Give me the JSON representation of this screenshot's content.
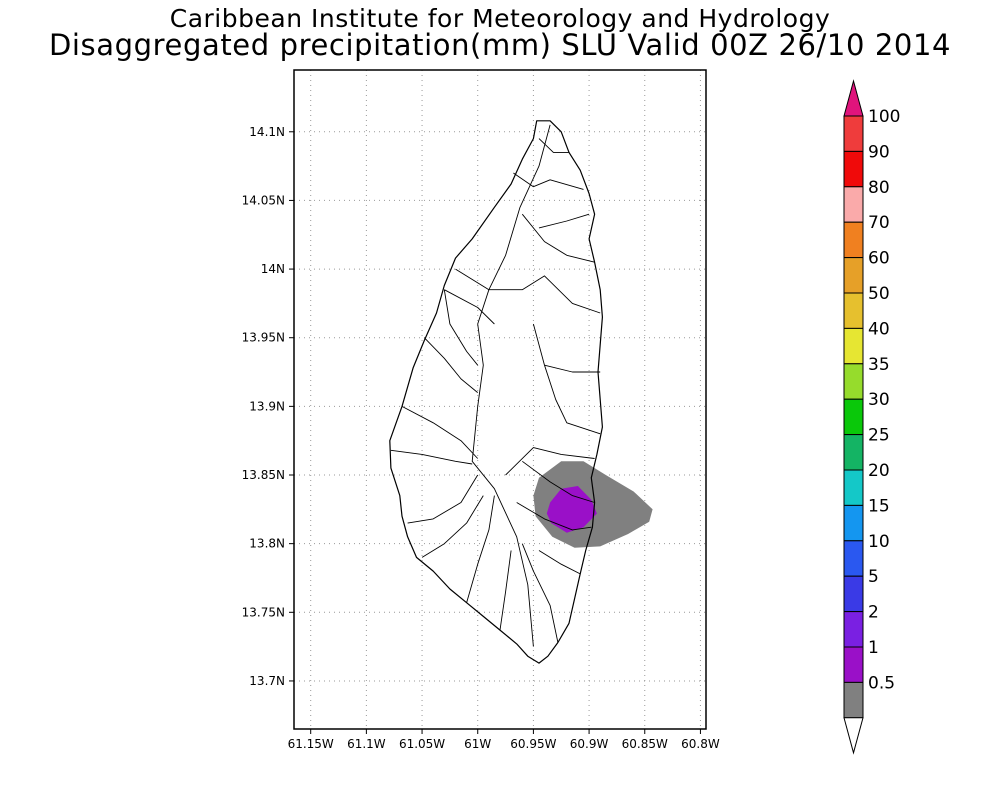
{
  "title": {
    "line1": "Caribbean Institute for Meteorology and Hydrology",
    "line2": "Disaggregated precipitation(mm) SLU Valid 00Z 26/10 2014"
  },
  "map": {
    "lon_range": [
      -61.165,
      -60.795
    ],
    "lat_range": [
      13.665,
      14.145
    ],
    "x_ticks": [
      {
        "value": -61.15,
        "label": "61.15W"
      },
      {
        "value": -61.1,
        "label": "61.1W"
      },
      {
        "value": -61.05,
        "label": "61.05W"
      },
      {
        "value": -61.0,
        "label": "61W"
      },
      {
        "value": -60.95,
        "label": "60.95W"
      },
      {
        "value": -60.9,
        "label": "60.9W"
      },
      {
        "value": -60.85,
        "label": "60.85W"
      },
      {
        "value": -60.8,
        "label": "60.8W"
      }
    ],
    "y_ticks": [
      {
        "value": 14.1,
        "label": "14.1N"
      },
      {
        "value": 14.05,
        "label": "14.05N"
      },
      {
        "value": 14.0,
        "label": "14N"
      },
      {
        "value": 13.95,
        "label": "13.95N"
      },
      {
        "value": 13.9,
        "label": "13.9N"
      },
      {
        "value": 13.85,
        "label": "13.85N"
      },
      {
        "value": 13.8,
        "label": "13.8N"
      },
      {
        "value": 13.75,
        "label": "13.75N"
      },
      {
        "value": 13.7,
        "label": "13.7N"
      }
    ],
    "grid": true,
    "grid_style": "dotted",
    "island_name": "Saint Lucia",
    "coastline_lonlat": [
      [
        -60.947,
        14.108
      ],
      [
        -60.935,
        14.108
      ],
      [
        -60.925,
        14.1
      ],
      [
        -60.918,
        14.085
      ],
      [
        -60.908,
        14.072
      ],
      [
        -60.9,
        14.055
      ],
      [
        -60.895,
        14.04
      ],
      [
        -60.9,
        14.022
      ],
      [
        -60.895,
        14.005
      ],
      [
        -60.89,
        13.985
      ],
      [
        -60.888,
        13.965
      ],
      [
        -60.89,
        13.945
      ],
      [
        -60.892,
        13.925
      ],
      [
        -60.89,
        13.905
      ],
      [
        -60.888,
        13.885
      ],
      [
        -60.893,
        13.865
      ],
      [
        -60.898,
        13.848
      ],
      [
        -60.895,
        13.83
      ],
      [
        -60.897,
        13.812
      ],
      [
        -60.903,
        13.795
      ],
      [
        -60.908,
        13.778
      ],
      [
        -60.913,
        13.76
      ],
      [
        -60.918,
        13.742
      ],
      [
        -60.928,
        13.728
      ],
      [
        -60.937,
        13.718
      ],
      [
        -60.945,
        13.713
      ],
      [
        -60.955,
        13.718
      ],
      [
        -60.965,
        13.727
      ],
      [
        -60.98,
        13.737
      ],
      [
        -60.995,
        13.747
      ],
      [
        -61.01,
        13.757
      ],
      [
        -61.025,
        13.767
      ],
      [
        -61.04,
        13.78
      ],
      [
        -61.055,
        13.79
      ],
      [
        -61.063,
        13.805
      ],
      [
        -61.068,
        13.82
      ],
      [
        -61.07,
        13.835
      ],
      [
        -61.078,
        13.855
      ],
      [
        -61.079,
        13.875
      ],
      [
        -61.068,
        13.9
      ],
      [
        -61.058,
        13.928
      ],
      [
        -61.048,
        13.948
      ],
      [
        -61.037,
        13.968
      ],
      [
        -61.03,
        13.988
      ],
      [
        -61.02,
        14.008
      ],
      [
        -61.005,
        14.022
      ],
      [
        -60.985,
        14.045
      ],
      [
        -60.97,
        14.062
      ],
      [
        -60.96,
        14.08
      ],
      [
        -60.95,
        14.095
      ]
    ],
    "rivers_lonlat": [
      [
        [
          -60.935,
          14.105
        ],
        [
          -60.945,
          14.075
        ],
        [
          -60.962,
          14.045
        ],
        [
          -60.975,
          14.01
        ],
        [
          -60.99,
          13.985
        ],
        [
          -61.0,
          13.96
        ],
        [
          -60.995,
          13.93
        ],
        [
          -61.0,
          13.9
        ],
        [
          -61.005,
          13.86
        ],
        [
          -60.985,
          13.84
        ],
        [
          -60.965,
          13.805
        ],
        [
          -60.955,
          13.77
        ],
        [
          -60.95,
          13.725
        ]
      ],
      [
        [
          -61.02,
          14.0
        ],
        [
          -60.99,
          13.985
        ],
        [
          -60.96,
          13.985
        ],
        [
          -60.94,
          13.995
        ],
        [
          -60.915,
          13.975
        ],
        [
          -60.89,
          13.968
        ]
      ],
      [
        [
          -61.03,
          13.985
        ],
        [
          -61.025,
          13.96
        ],
        [
          -61.01,
          13.94
        ],
        [
          -61.0,
          13.93
        ]
      ],
      [
        [
          -61.048,
          13.95
        ],
        [
          -61.03,
          13.935
        ],
        [
          -61.015,
          13.92
        ],
        [
          -61.0,
          13.91
        ]
      ],
      [
        [
          -61.068,
          13.9
        ],
        [
          -61.04,
          13.888
        ],
        [
          -61.015,
          13.875
        ],
        [
          -61.0,
          13.862
        ]
      ],
      [
        [
          -61.078,
          13.868
        ],
        [
          -61.05,
          13.865
        ],
        [
          -61.02,
          13.86
        ],
        [
          -61.005,
          13.858
        ]
      ],
      [
        [
          -60.95,
          13.96
        ],
        [
          -60.94,
          13.93
        ],
        [
          -60.93,
          13.905
        ],
        [
          -60.92,
          13.888
        ],
        [
          -60.89,
          13.88
        ]
      ],
      [
        [
          -60.94,
          13.93
        ],
        [
          -60.915,
          13.925
        ],
        [
          -60.89,
          13.925
        ]
      ],
      [
        [
          -60.96,
          14.04
        ],
        [
          -60.94,
          14.02
        ],
        [
          -60.92,
          14.01
        ],
        [
          -60.895,
          14.005
        ]
      ],
      [
        [
          -60.968,
          14.07
        ],
        [
          -60.95,
          14.06
        ],
        [
          -60.935,
          14.065
        ],
        [
          -60.905,
          14.058
        ]
      ],
      [
        [
          -60.96,
          13.86
        ],
        [
          -60.935,
          13.845
        ],
        [
          -60.915,
          13.835
        ],
        [
          -60.895,
          13.83
        ]
      ],
      [
        [
          -60.965,
          13.83
        ],
        [
          -60.94,
          13.818
        ],
        [
          -60.915,
          13.81
        ],
        [
          -60.898,
          13.812
        ]
      ],
      [
        [
          -60.975,
          13.85
        ],
        [
          -60.95,
          13.87
        ],
        [
          -60.925,
          13.865
        ],
        [
          -60.895,
          13.862
        ]
      ],
      [
        [
          -61.063,
          13.815
        ],
        [
          -61.04,
          13.818
        ],
        [
          -61.015,
          13.83
        ],
        [
          -61.0,
          13.85
        ]
      ],
      [
        [
          -61.05,
          13.79
        ],
        [
          -61.03,
          13.8
        ],
        [
          -61.01,
          13.815
        ],
        [
          -60.995,
          13.835
        ]
      ],
      [
        [
          -61.01,
          13.757
        ],
        [
          -61.0,
          13.785
        ],
        [
          -60.99,
          13.81
        ],
        [
          -60.985,
          13.835
        ]
      ],
      [
        [
          -60.98,
          13.737
        ],
        [
          -60.975,
          13.765
        ],
        [
          -60.97,
          13.795
        ]
      ],
      [
        [
          -60.928,
          13.728
        ],
        [
          -60.935,
          13.755
        ],
        [
          -60.95,
          13.78
        ],
        [
          -60.96,
          13.8
        ]
      ],
      [
        [
          -60.908,
          13.778
        ],
        [
          -60.925,
          13.785
        ],
        [
          -60.945,
          13.795
        ]
      ],
      [
        [
          -61.03,
          13.985
        ],
        [
          -61.0,
          13.972
        ],
        [
          -60.985,
          13.96
        ]
      ],
      [
        [
          -60.9,
          14.04
        ],
        [
          -60.92,
          14.035
        ],
        [
          -60.945,
          14.03
        ]
      ],
      [
        [
          -60.945,
          14.095
        ],
        [
          -60.932,
          14.085
        ],
        [
          -60.918,
          14.085
        ]
      ]
    ]
  },
  "precipitation_fields": [
    {
      "name": "0.5-1 mm",
      "color": "#808080",
      "outline_lonlat": [
        [
          -60.945,
          13.848
        ],
        [
          -60.925,
          13.86
        ],
        [
          -60.905,
          13.86
        ],
        [
          -60.885,
          13.85
        ],
        [
          -60.86,
          13.838
        ],
        [
          -60.843,
          13.825
        ],
        [
          -60.846,
          13.816
        ],
        [
          -60.865,
          13.807
        ],
        [
          -60.89,
          13.798
        ],
        [
          -60.913,
          13.797
        ],
        [
          -60.933,
          13.805
        ],
        [
          -60.948,
          13.82
        ],
        [
          -60.95,
          13.835
        ]
      ]
    },
    {
      "name": "1-2 mm",
      "color": "#9a10c8",
      "outline_lonlat": [
        [
          -60.935,
          13.83
        ],
        [
          -60.925,
          13.84
        ],
        [
          -60.91,
          13.842
        ],
        [
          -60.898,
          13.832
        ],
        [
          -60.893,
          13.822
        ],
        [
          -60.905,
          13.812
        ],
        [
          -60.92,
          13.808
        ],
        [
          -60.934,
          13.815
        ],
        [
          -60.938,
          13.822
        ]
      ]
    }
  ],
  "colorbar": {
    "top_color": "#e0147c",
    "bottom_color": "#ffffff",
    "colors": [
      "#ef3c3c",
      "#f00a0a",
      "#faaaaa",
      "#f08020",
      "#e6a028",
      "#e6c02e",
      "#e6e632",
      "#96dc2c",
      "#0ac80a",
      "#14b464",
      "#14c8c8",
      "#1496f0",
      "#2a58f0",
      "#3a3ae6",
      "#7a20e2",
      "#9a10c8",
      "#808080"
    ],
    "labels": [
      "100",
      "90",
      "80",
      "70",
      "60",
      "50",
      "40",
      "35",
      "30",
      "25",
      "20",
      "15",
      "10",
      "5",
      "2",
      "1",
      "0.5"
    ]
  }
}
